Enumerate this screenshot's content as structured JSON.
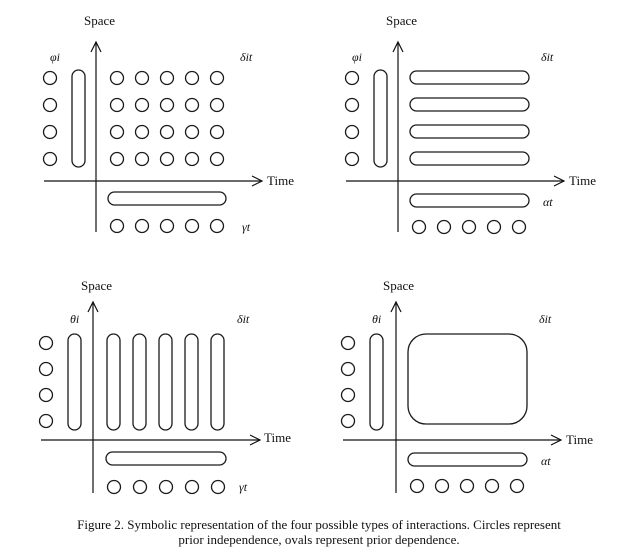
{
  "panels": [
    {
      "space_label": "Space",
      "time_label": "Time",
      "left_symbol": "φi",
      "right_symbol": "δit",
      "bottom_symbol": "γt"
    },
    {
      "space_label": "Space",
      "time_label": "Time",
      "left_symbol": "φi",
      "right_symbol": "δit",
      "bottom_symbol": "αt"
    },
    {
      "space_label": "Space",
      "time_label": "Time",
      "left_symbol": "θi",
      "right_symbol": "δit",
      "bottom_symbol": "γt"
    },
    {
      "space_label": "Space",
      "time_label": "Time",
      "left_symbol": "θi",
      "right_symbol": "δit",
      "bottom_symbol": "αt"
    }
  ],
  "caption": {
    "line1": "Figure 2. Symbolic representation of the four possible types of interactions. Circles represent",
    "line2": "prior independence, ovals represent prior dependence."
  }
}
